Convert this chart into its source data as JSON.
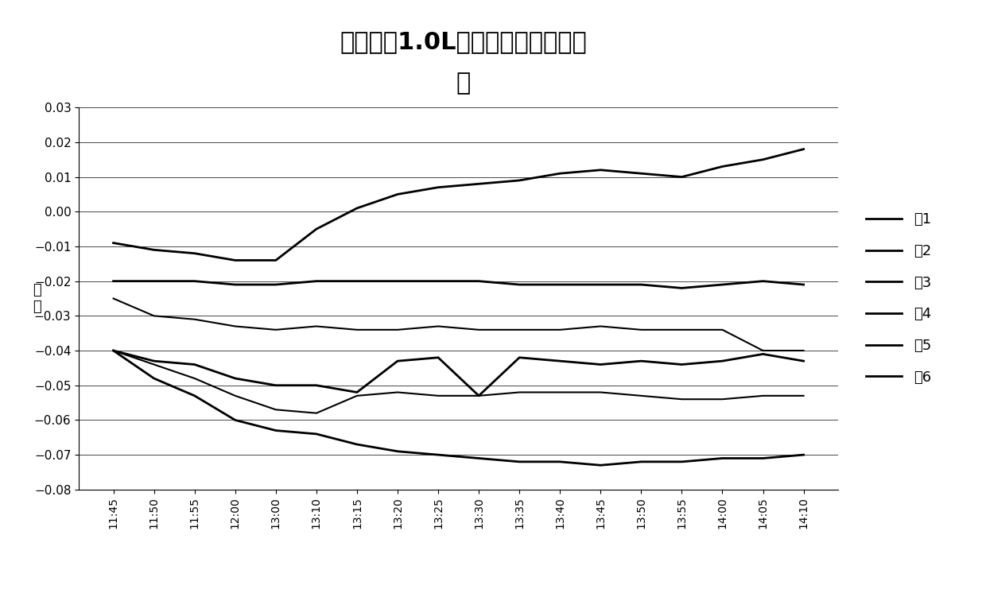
{
  "title_line1": "功率因素1.0L下误差随时间变化特",
  "title_line2": "性",
  "ylabel": "误\n差",
  "x_labels": [
    "11:45",
    "11:50",
    "11:55",
    "12:00",
    "13:00",
    "13:10",
    "13:15",
    "13:20",
    "13:25",
    "13:30",
    "13:35",
    "13:40",
    "13:45",
    "13:50",
    "13:55",
    "14:00",
    "14:05",
    "14:10"
  ],
  "ylim": [
    -0.08,
    0.03
  ],
  "yticks": [
    -0.08,
    -0.07,
    -0.06,
    -0.05,
    -0.04,
    -0.03,
    -0.02,
    -0.01,
    0,
    0.01,
    0.02,
    0.03
  ],
  "series": {
    "表1": [
      -0.009,
      -0.011,
      -0.012,
      -0.014,
      -0.014,
      -0.005,
      0.001,
      0.005,
      0.007,
      0.008,
      0.009,
      0.011,
      0.012,
      0.011,
      0.01,
      0.013,
      0.015,
      0.018
    ],
    "表2": [
      -0.02,
      -0.02,
      -0.02,
      -0.021,
      -0.021,
      -0.02,
      -0.02,
      -0.02,
      -0.02,
      -0.02,
      -0.021,
      -0.021,
      -0.021,
      -0.021,
      -0.022,
      -0.021,
      -0.02,
      -0.021
    ],
    "表3": [
      -0.025,
      -0.03,
      -0.031,
      -0.033,
      -0.034,
      -0.033,
      -0.034,
      -0.034,
      -0.033,
      -0.034,
      -0.034,
      -0.034,
      -0.033,
      -0.034,
      -0.034,
      -0.034,
      -0.04,
      -0.04
    ],
    "表4": [
      -0.04,
      -0.043,
      -0.044,
      -0.048,
      -0.05,
      -0.05,
      -0.052,
      -0.043,
      -0.042,
      -0.053,
      -0.042,
      -0.043,
      -0.044,
      -0.043,
      -0.044,
      -0.043,
      -0.041,
      -0.043
    ],
    "表5": [
      -0.04,
      -0.044,
      -0.048,
      -0.053,
      -0.057,
      -0.058,
      -0.053,
      -0.052,
      -0.053,
      -0.053,
      -0.052,
      -0.052,
      -0.052,
      -0.053,
      -0.054,
      -0.054,
      -0.053,
      -0.053
    ],
    "表6": [
      -0.04,
      -0.048,
      -0.053,
      -0.06,
      -0.063,
      -0.064,
      -0.067,
      -0.069,
      -0.07,
      -0.071,
      -0.072,
      -0.072,
      -0.073,
      -0.072,
      -0.072,
      -0.071,
      -0.071,
      -0.07
    ]
  },
  "line_widths": {
    "表1": 2.0,
    "表2": 2.0,
    "表3": 1.5,
    "表4": 2.0,
    "表5": 1.5,
    "表6": 2.0
  },
  "background_color": "#ffffff"
}
